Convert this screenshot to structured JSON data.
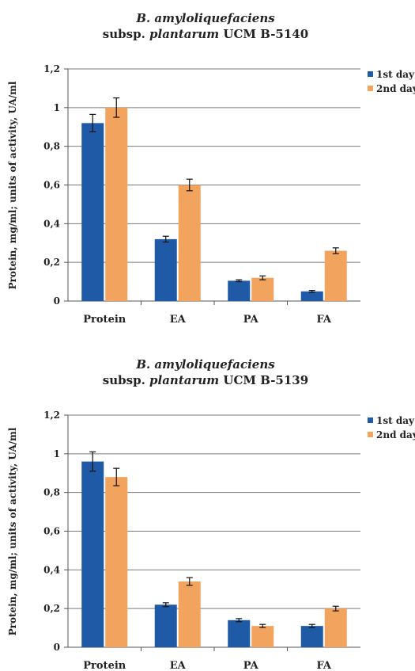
{
  "colors": {
    "series_1": "#1f5aa6",
    "series_2": "#f2a35e",
    "grid": "#7a7a7a",
    "axis": "#555555"
  },
  "chart_data": [
    {
      "type": "bar",
      "title_line1": "B. amyloliquefaciens",
      "title_line2_prefix": "subsp.",
      "title_line2_italic": "plantarum",
      "title_line2_suffix": "UCM B-5140",
      "ylabel": "Protein, mg/ml; units of activity, UA/ml",
      "xlabel": "",
      "ylim": [
        0,
        1.2
      ],
      "yticks": [
        "0",
        "0,2",
        "0,4",
        "0,6",
        "0,8",
        "1",
        "1,2"
      ],
      "grid": true,
      "legend_position": "top-right",
      "categories": [
        "Protein",
        "EA",
        "PA",
        "FA"
      ],
      "series": [
        {
          "name": "1st day",
          "values": [
            0.92,
            0.32,
            0.105,
            0.05
          ],
          "errors": [
            0.045,
            0.015,
            0.005,
            0.005
          ]
        },
        {
          "name": "2nd day",
          "values": [
            1.0,
            0.6,
            0.12,
            0.26
          ],
          "errors": [
            0.05,
            0.03,
            0.01,
            0.015
          ]
        }
      ]
    },
    {
      "type": "bar",
      "title_line1": "B. amyloliquefaciens",
      "title_line2_prefix": "subsp.",
      "title_line2_italic": "plantarum",
      "title_line2_suffix": "UCM B-5139",
      "ylabel": "Protein, mg/ml; units of activity, UA/ml",
      "xlabel": "",
      "ylim": [
        0,
        1.2
      ],
      "yticks": [
        "0",
        "0,2",
        "0,4",
        "0,6",
        "0,8",
        "1",
        "1,2"
      ],
      "grid": true,
      "legend_position": "top-right",
      "categories": [
        "Protein",
        "EA",
        "PA",
        "FA"
      ],
      "series": [
        {
          "name": "1st day",
          "values": [
            0.96,
            0.22,
            0.14,
            0.11
          ],
          "errors": [
            0.05,
            0.01,
            0.008,
            0.008
          ]
        },
        {
          "name": "2nd day",
          "values": [
            0.88,
            0.34,
            0.11,
            0.2
          ],
          "errors": [
            0.045,
            0.02,
            0.008,
            0.012
          ]
        }
      ]
    }
  ]
}
